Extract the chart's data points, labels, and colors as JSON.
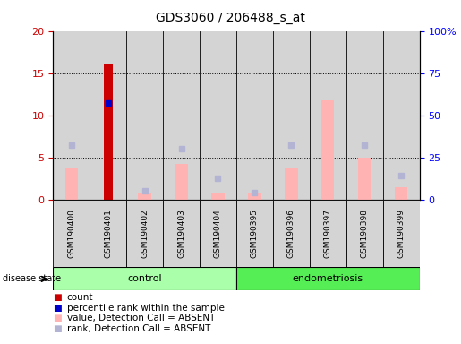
{
  "title": "GDS3060 / 206488_s_at",
  "samples": [
    "GSM190400",
    "GSM190401",
    "GSM190402",
    "GSM190403",
    "GSM190404",
    "GSM190395",
    "GSM190396",
    "GSM190397",
    "GSM190398",
    "GSM190399"
  ],
  "count_values": [
    0,
    16.0,
    0,
    0,
    0,
    0,
    0,
    0,
    0,
    0
  ],
  "percentile_values": [
    0,
    11.5,
    0,
    0,
    0,
    0,
    0,
    0,
    0,
    0
  ],
  "value_absent": [
    3.8,
    0,
    0.8,
    4.2,
    0.8,
    0.8,
    3.8,
    11.8,
    5.0,
    1.5
  ],
  "rank_absent": [
    6.5,
    0,
    1.0,
    6.0,
    2.5,
    0.8,
    6.5,
    0,
    6.5,
    2.8
  ],
  "ylim_left": [
    0,
    20
  ],
  "ylim_right": [
    0,
    100
  ],
  "yticks_left": [
    0,
    5,
    10,
    15,
    20
  ],
  "yticks_right": [
    0,
    25,
    50,
    75,
    100
  ],
  "ytick_labels_right": [
    "0",
    "25",
    "50",
    "75",
    "100%"
  ],
  "color_count": "#cc0000",
  "color_percentile": "#0000cc",
  "color_value_absent": "#ffb3b3",
  "color_rank_absent": "#b3b3d4",
  "group_control_color": "#aaffaa",
  "group_endo_color": "#55ee55",
  "bar_bg_color": "#d4d4d4",
  "control_label": "control",
  "endo_label": "endometriosis",
  "n_control": 5,
  "n_endo": 5,
  "legend_items": [
    {
      "label": "count",
      "color": "#cc0000"
    },
    {
      "label": "percentile rank within the sample",
      "color": "#0000cc"
    },
    {
      "label": "value, Detection Call = ABSENT",
      "color": "#ffb3b3"
    },
    {
      "label": "rank, Detection Call = ABSENT",
      "color": "#b3b3d4"
    }
  ]
}
